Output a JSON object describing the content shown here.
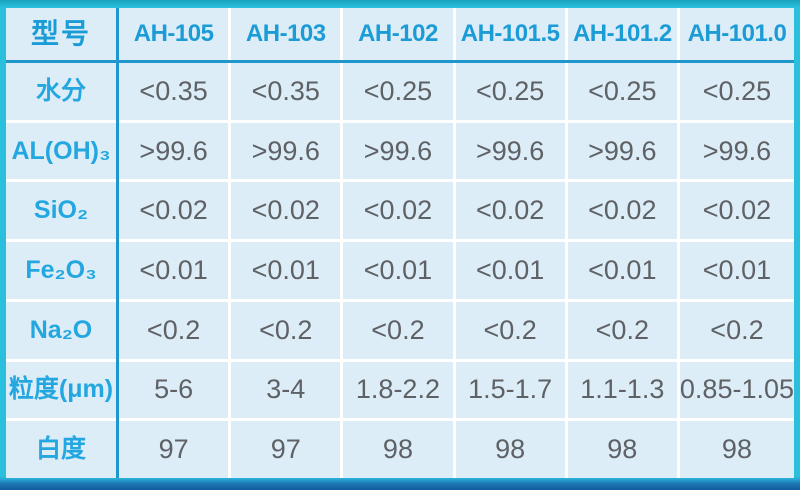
{
  "chart_data": {
    "type": "table",
    "columns": [
      "型号",
      "AH-105",
      "AH-103",
      "AH-102",
      "AH-101.5",
      "AH-101.2",
      "AH-101.0"
    ],
    "rows": [
      {
        "label": "水分",
        "values": [
          "<0.35",
          "<0.35",
          "<0.25",
          "<0.25",
          "<0.25",
          "<0.25"
        ]
      },
      {
        "label": "AL(OH)₃",
        "values": [
          ">99.6",
          ">99.6",
          ">99.6",
          ">99.6",
          ">99.6",
          ">99.6"
        ]
      },
      {
        "label": "SiO₂",
        "values": [
          "<0.02",
          "<0.02",
          "<0.02",
          "<0.02",
          "<0.02",
          "<0.02"
        ]
      },
      {
        "label": "Fe₂O₃",
        "values": [
          "<0.01",
          "<0.01",
          "<0.01",
          "<0.01",
          "<0.01",
          "<0.01"
        ]
      },
      {
        "label": "Na₂O",
        "values": [
          "<0.2",
          "<0.2",
          "<0.2",
          "<0.2",
          "<0.2",
          "<0.2"
        ]
      },
      {
        "label": "粒度(μm)",
        "values": [
          "5-6",
          "3-4",
          "1.8-2.2",
          "1.5-1.7",
          "1.1-1.3",
          "0.85-1.05"
        ]
      },
      {
        "label": "白度",
        "values": [
          "97",
          "97",
          "98",
          "98",
          "98",
          "98"
        ]
      }
    ]
  },
  "colors": {
    "frame_cyan": "#2abfdc",
    "frame_top_teal": "#16a2ba",
    "frame_bottom_blue": "#1b74b0",
    "divider_blue": "#1f97cd",
    "grid_line": "#ffffff",
    "cell_background": "#dcedf7",
    "header_text": "#1b9cd6",
    "label_text": "#24a7e0",
    "value_text": "#5e6165"
  }
}
